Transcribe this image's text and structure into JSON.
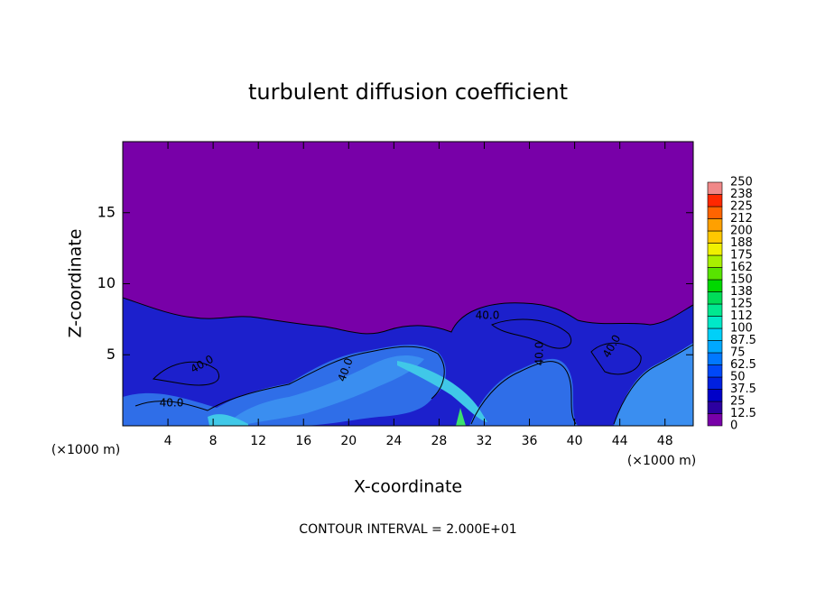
{
  "chart_data": {
    "type": "contour",
    "title": "turbulent diffusion coefficient",
    "x_label": "X-coordinate",
    "y_label": "Z-coordinate",
    "x_unit_label": "(×1000 m)",
    "footer": "CONTOUR INTERVAL = 2.000E+01",
    "xlim": [
      0,
      50.5
    ],
    "ylim": [
      0,
      20
    ],
    "xticks": [
      4,
      8,
      12,
      16,
      20,
      24,
      28,
      32,
      36,
      40,
      44,
      48
    ],
    "yticks": [
      5,
      10,
      15
    ],
    "colorbar": {
      "levels": [
        0,
        12.5,
        25,
        37.5,
        50,
        62.5,
        75,
        87.5,
        100,
        112,
        125,
        138,
        150,
        162,
        175,
        188,
        200,
        212,
        225,
        238,
        250
      ],
      "colors": [
        "#7800a8",
        "#2c00a0",
        "#0000c8",
        "#0020e0",
        "#0048f8",
        "#0078ff",
        "#00a8ff",
        "#00d0f8",
        "#00e8c8",
        "#00e890",
        "#00dc58",
        "#00d800",
        "#58e400",
        "#a8f000",
        "#f0f000",
        "#ffc800",
        "#ffa000",
        "#ff6400",
        "#ff2800",
        "#f08888"
      ]
    },
    "contour_labels": [
      "40.0",
      "40.0",
      "40.0",
      "40.0",
      "40.0",
      "40.0"
    ]
  }
}
